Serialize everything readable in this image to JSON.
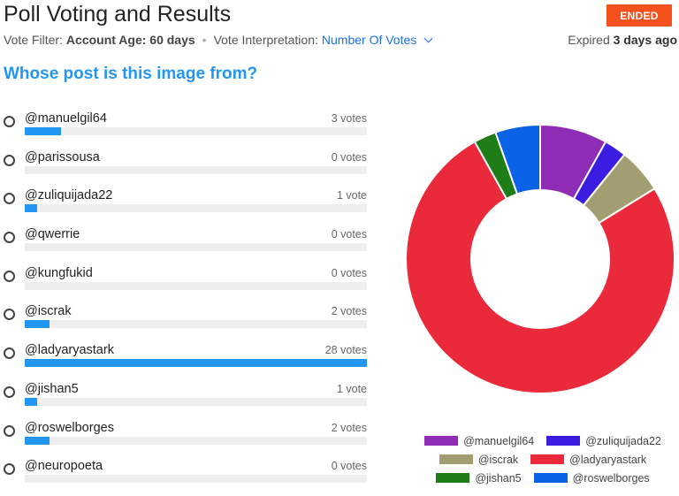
{
  "header": {
    "title": "Poll Voting and Results",
    "status": "ENDED",
    "filter_label": "Vote Filter:",
    "filter_value": "Account Age: 60 days",
    "interpretation_label": "Vote Interpretation:",
    "interpretation_value": "Number Of Votes",
    "expired_label": "Expired",
    "expired_value": "3 days ago"
  },
  "question": "Whose post is this image from?",
  "options": [
    {
      "label": "@manuelgil64",
      "votes_text": "3 votes",
      "votes": 3
    },
    {
      "label": "@parissousa",
      "votes_text": "0 votes",
      "votes": 0
    },
    {
      "label": "@zuliquijada22",
      "votes_text": "1 vote",
      "votes": 1
    },
    {
      "label": "@qwerrie",
      "votes_text": "0 votes",
      "votes": 0
    },
    {
      "label": "@kungfukid",
      "votes_text": "0 votes",
      "votes": 0
    },
    {
      "label": "@iscrak",
      "votes_text": "2 votes",
      "votes": 2
    },
    {
      "label": "@ladyaryastark",
      "votes_text": "28 votes",
      "votes": 28
    },
    {
      "label": "@jishan5",
      "votes_text": "1 vote",
      "votes": 1
    },
    {
      "label": "@roswelborges",
      "votes_text": "2 votes",
      "votes": 2
    },
    {
      "label": "@neuropoeta",
      "votes_text": "0 votes",
      "votes": 0
    }
  ],
  "colors": {
    "accent": "#2196f3",
    "status": "#f4511e"
  },
  "chart_data": {
    "type": "pie",
    "categories": [
      "@manuelgil64",
      "@zuliquijada22",
      "@iscrak",
      "@ladyaryastark",
      "@jishan5",
      "@roswelborges"
    ],
    "values": [
      3,
      1,
      2,
      28,
      1,
      2
    ],
    "colors": [
      "#8e2cb6",
      "#3a1de0",
      "#a29e72",
      "#ea2a3b",
      "#1e7d16",
      "#0a63e6"
    ],
    "legend": [
      "@manuelgil64",
      "@zuliquijada22",
      "@iscrak",
      "@ladyaryastark",
      "@jishan5",
      "@roswelborges"
    ],
    "legend_placement": "bottom"
  }
}
